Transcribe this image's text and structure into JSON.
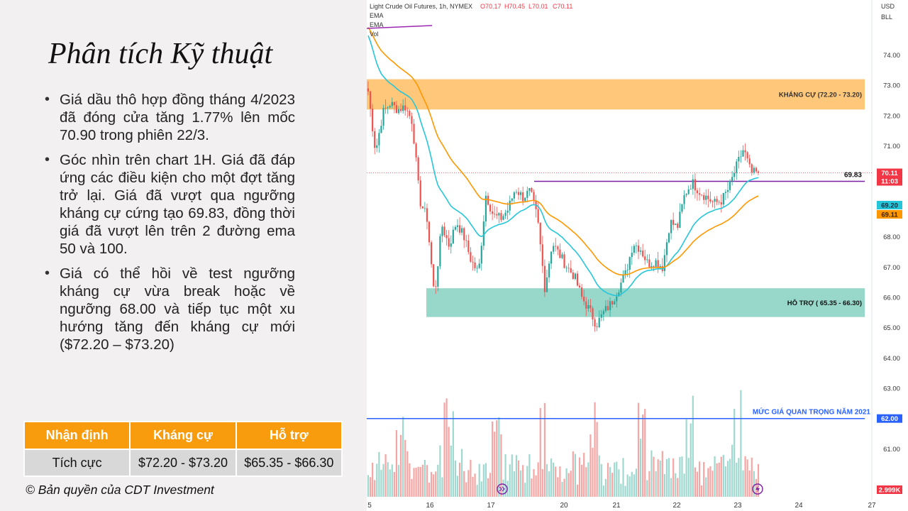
{
  "slide": {
    "title": "Phân tích Kỹ thuật",
    "bullets": [
      "Giá dầu thô hợp đồng tháng 4/2023 đã đóng cửa tăng 1.77% lên mốc 70.90 trong phiên 22/3.",
      "Góc nhìn trên chart 1H. Giá đã đáp ứng các điều kiện cho một đợt tăng trở lại. Giá đã vượt qua ngưỡng kháng cự cứng tạo 69.83, đồng thời giá đã vượt lên trên 2 đường ema 50 và 100.",
      "Giá có thể hồi về test ngưỡng kháng cự vừa break hoặc về ngưỡng 68.00 và tiếp tục một xu hướng tăng đến kháng cự mới ($72.20 – $73.20)"
    ],
    "table": {
      "headers": [
        "Nhận định",
        "Kháng cự",
        "Hỗ trợ"
      ],
      "row": [
        "Tích cực",
        "$72.20 - $73.20",
        "$65.35 - $66.30"
      ]
    },
    "copyright": "© Bản quyền của CDT Investment"
  },
  "chart_data": {
    "type": "candlestick",
    "symbol_line": "Light Crude Oil Futures, 1h, NYMEX",
    "ohlc_labels": {
      "O": "O70.17",
      "H": "H70.45",
      "L": "L70.01",
      "C": "C70.11"
    },
    "indicators": [
      "EMA",
      "EMA",
      "Vol"
    ],
    "currency": [
      "USD",
      "BLL"
    ],
    "y_ticks": [
      "74.00",
      "73.00",
      "72.00",
      "71.00",
      "70.00",
      "69.00",
      "68.00",
      "67.00",
      "66.00",
      "65.00",
      "64.00",
      "63.00",
      "62.00",
      "61.00"
    ],
    "y_tick_values": [
      74,
      73,
      72,
      71,
      70,
      69,
      68,
      67,
      66,
      65,
      64,
      63,
      62,
      61
    ],
    "ylim": [
      60.4,
      75.1
    ],
    "x_ticks": [
      "5",
      "16",
      "17",
      "20",
      "21",
      "22",
      "23",
      "24",
      "27"
    ],
    "resistance_zone": {
      "label": "KHÁNG CỰ (72.20 - 73.20)",
      "low": 72.2,
      "high": 73.2,
      "color": "#ffc77a"
    },
    "support_zone": {
      "label": "HỖ TRỢ ( 65.35 - 66.30)",
      "low": 65.35,
      "high": 66.3,
      "color": "#98d8cb"
    },
    "resistance_line": {
      "label": "69.83",
      "value": 69.83,
      "color": "#7b1fa2"
    },
    "key_level": {
      "label": "MỨC GIÁ QUAN TRỌNG NĂM 2021",
      "value": 62.0,
      "tag": "62.00",
      "color": "#2962ff"
    },
    "last_price": {
      "value": 70.11,
      "label": "70.11",
      "countdown": "11:03",
      "color": "#f23645"
    },
    "ema_tags": [
      {
        "value": 69.2,
        "label": "69.20",
        "color": "#26c6da"
      },
      {
        "value": 69.11,
        "label": "69.11",
        "color": "#ff9800"
      }
    ],
    "volume_tag": "2.999K",
    "up_color": "#26a69a",
    "down_color": "#ef5350",
    "ema50_color": "#26c6da",
    "ema100_color": "#ff9800",
    "close_path": [
      72.8,
      70.8,
      72.1,
      72.4,
      72.2,
      72.3,
      71.8,
      69.2,
      68.6,
      66.0,
      68.4,
      67.7,
      68.5,
      68.0,
      67.2,
      66.8,
      69.4,
      68.7,
      68.6,
      68.9,
      69.6,
      69.3,
      69.5,
      68.6,
      66.3,
      67.8,
      67.4,
      67.0,
      66.7,
      66.0,
      65.6,
      65.1,
      65.5,
      65.8,
      66.3,
      66.8,
      67.8,
      67.6,
      67.1,
      67.2,
      67.0,
      68.5,
      68.3,
      69.4,
      69.8,
      69.5,
      69.3,
      69.1,
      69.2,
      69.6,
      70.3,
      70.9,
      70.1,
      70.11
    ]
  }
}
